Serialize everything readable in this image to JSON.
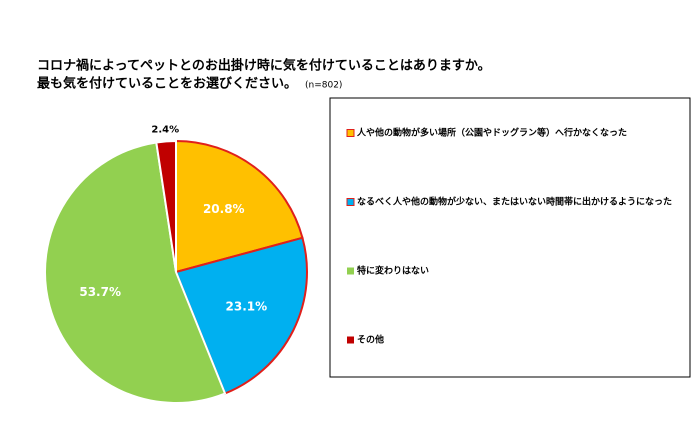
{
  "chart_data": {
    "type": "pie",
    "title": "コロナ禍によってペットとのお出掛け時に気を付けていることはありますか。",
    "subtitle": "最も気を付けていることをお選びください。",
    "note": "(n=802)",
    "categories": [
      "人や他の動物が多い場所（公園やドッグラン等）へ行かなくなった",
      "なるべく人や他の動物が少ない、またはいない時間帯に出かけるようになった",
      "特に変わりはない",
      "その他"
    ],
    "values": [
      20.8,
      23.1,
      53.7,
      2.4
    ],
    "value_labels": [
      "20.8%",
      "23.1%",
      "53.7%",
      "2.4%"
    ],
    "colors": [
      "#FFC000",
      "#00B0F0",
      "#92D050",
      "#C00000"
    ],
    "edgecolors": [
      "#E0201B",
      "#E0201B",
      "#FFFFFF",
      "#FFFFFF"
    ],
    "legend": "right"
  }
}
